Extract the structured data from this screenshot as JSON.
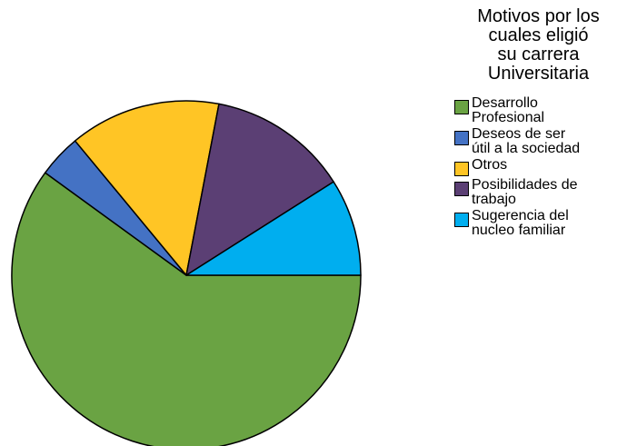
{
  "chart_data": {
    "type": "pie",
    "title_lines": [
      "Motivos por los",
      "cuales eligió",
      "su carrera",
      "Universitaria"
    ],
    "legend_placement": "right",
    "slices": [
      {
        "label_lines": [
          "Desarrollo",
          "Profesional"
        ],
        "value": 60,
        "color": "#6aa343"
      },
      {
        "label_lines": [
          "Deseos de ser",
          "útil a la sociedad"
        ],
        "value": 4,
        "color": "#4472c4"
      },
      {
        "label_lines": [
          "Otros"
        ],
        "value": 14,
        "color": "#ffc525"
      },
      {
        "label_lines": [
          "Posibilidades de",
          "trabajo"
        ],
        "value": 13,
        "color": "#5b3f74"
      },
      {
        "label_lines": [
          "Sugerencia del",
          "nucleo familiar"
        ],
        "value": 9,
        "color": "#00aeef"
      }
    ]
  }
}
